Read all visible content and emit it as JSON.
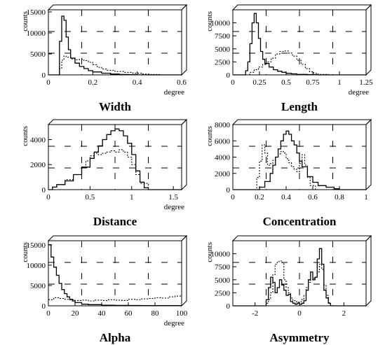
{
  "chart_data": [
    {
      "type": "line",
      "title": "Width",
      "xlabel": "degree",
      "ylabel": "counts",
      "xlim": [
        0,
        0.6
      ],
      "ylim": [
        0,
        15500
      ],
      "xticks": [
        "0",
        "0.2",
        "0.4",
        "0.6"
      ],
      "yticks": [
        "0",
        "5000",
        "10000",
        "15000"
      ],
      "grid": true,
      "series": [
        {
          "style": "solid",
          "x": [
            0.0,
            0.04,
            0.05,
            0.06,
            0.07,
            0.08,
            0.09,
            0.1,
            0.12,
            0.14,
            0.16,
            0.18,
            0.2,
            0.24,
            0.28,
            0.32,
            0.36,
            0.4,
            0.44,
            0.48,
            0.52,
            0.6
          ],
          "values": [
            0,
            0,
            8000,
            14000,
            13000,
            9000,
            6000,
            4000,
            2800,
            2000,
            1500,
            1000,
            700,
            400,
            200,
            100,
            50,
            20,
            0,
            0,
            0,
            0
          ]
        },
        {
          "style": "dotted",
          "x": [
            0.0,
            0.04,
            0.05,
            0.06,
            0.07,
            0.08,
            0.1,
            0.12,
            0.14,
            0.16,
            0.18,
            0.2,
            0.22,
            0.24,
            0.26,
            0.3,
            0.34,
            0.38,
            0.42,
            0.46,
            0.5,
            0.6
          ],
          "values": [
            0,
            0,
            1500,
            3500,
            4500,
            4200,
            3800,
            3600,
            3700,
            3400,
            3000,
            2400,
            1800,
            1400,
            1100,
            800,
            600,
            400,
            200,
            100,
            0,
            0
          ]
        }
      ]
    },
    {
      "type": "line",
      "title": "Length",
      "xlabel": "degree",
      "ylabel": "counts",
      "xlim": [
        0,
        1.25
      ],
      "ylim": [
        0,
        12500
      ],
      "xticks": [
        "0",
        "0.25",
        "0.5",
        "0.75",
        "1",
        "1.25"
      ],
      "yticks": [
        "0",
        "2500",
        "5000",
        "7500",
        "10000"
      ],
      "grid": true,
      "series": [
        {
          "style": "solid",
          "x": [
            0.0,
            0.1,
            0.12,
            0.14,
            0.16,
            0.18,
            0.2,
            0.22,
            0.24,
            0.26,
            0.28,
            0.3,
            0.34,
            0.38,
            0.42,
            0.46,
            0.5,
            0.55,
            0.6,
            0.7,
            0.8,
            1.25
          ],
          "values": [
            0,
            0,
            800,
            2500,
            6000,
            10000,
            11800,
            10000,
            7000,
            4500,
            3000,
            2200,
            1500,
            1000,
            700,
            500,
            300,
            200,
            100,
            50,
            0,
            0
          ]
        },
        {
          "style": "dotted",
          "x": [
            0.0,
            0.12,
            0.16,
            0.2,
            0.24,
            0.28,
            0.32,
            0.36,
            0.4,
            0.44,
            0.48,
            0.52,
            0.56,
            0.6,
            0.64,
            0.68,
            0.72,
            0.76,
            0.8,
            0.9,
            1.25
          ],
          "values": [
            0,
            0,
            500,
            1000,
            1500,
            2000,
            2500,
            3200,
            4000,
            4500,
            4600,
            4200,
            3600,
            2800,
            2000,
            1200,
            600,
            300,
            100,
            0,
            0
          ]
        }
      ]
    },
    {
      "type": "line",
      "title": "Distance",
      "xlabel": "degree",
      "ylabel": "counts",
      "xlim": [
        0,
        1.6
      ],
      "ylim": [
        0,
        5200
      ],
      "xticks": [
        "0",
        "0.5",
        "1",
        "1.5"
      ],
      "yticks": [
        "0",
        "2000",
        "4000"
      ],
      "grid": true,
      "series": [
        {
          "style": "solid",
          "x": [
            0.0,
            0.05,
            0.1,
            0.2,
            0.3,
            0.4,
            0.5,
            0.55,
            0.6,
            0.65,
            0.7,
            0.75,
            0.8,
            0.85,
            0.9,
            0.95,
            1.0,
            1.05,
            1.1,
            1.15,
            1.2,
            1.6
          ],
          "values": [
            0,
            200,
            400,
            700,
            1200,
            1800,
            2500,
            3000,
            3500,
            4000,
            4400,
            4700,
            4850,
            4700,
            4300,
            3700,
            2800,
            1500,
            600,
            150,
            0,
            0
          ]
        },
        {
          "style": "dotted",
          "x": [
            0.0,
            0.05,
            0.1,
            0.2,
            0.3,
            0.4,
            0.45,
            0.5,
            0.55,
            0.6,
            0.65,
            0.7,
            0.75,
            0.8,
            0.85,
            0.9,
            0.95,
            1.0,
            1.05,
            1.1,
            1.2,
            1.6
          ],
          "values": [
            0,
            200,
            400,
            800,
            1200,
            1800,
            2300,
            2700,
            2900,
            2800,
            2900,
            3000,
            3100,
            3000,
            3200,
            3000,
            2600,
            2000,
            1200,
            500,
            0,
            0
          ]
        }
      ]
    },
    {
      "type": "line",
      "title": "Concentration",
      "xlabel": "",
      "ylabel": "counts",
      "xlim": [
        0,
        1
      ],
      "ylim": [
        0,
        8000
      ],
      "xticks": [
        "0",
        "0.2",
        "0.4",
        "0.6",
        "0.8",
        "1"
      ],
      "yticks": [
        "0",
        "2000",
        "4000",
        "6000",
        "8000"
      ],
      "grid": true,
      "series": [
        {
          "style": "solid",
          "x": [
            0.0,
            0.16,
            0.2,
            0.24,
            0.28,
            0.3,
            0.32,
            0.34,
            0.36,
            0.38,
            0.4,
            0.42,
            0.44,
            0.46,
            0.48,
            0.5,
            0.52,
            0.56,
            0.6,
            0.64,
            0.7,
            0.76,
            0.8,
            1.0
          ],
          "values": [
            0,
            0,
            300,
            1000,
            2000,
            3000,
            4000,
            5000,
            6000,
            6800,
            7200,
            6800,
            6000,
            5500,
            4500,
            3500,
            2800,
            1600,
            900,
            500,
            300,
            100,
            0,
            0
          ]
        },
        {
          "style": "dotted",
          "x": [
            0.0,
            0.16,
            0.18,
            0.2,
            0.22,
            0.24,
            0.26,
            0.28,
            0.3,
            0.32,
            0.34,
            0.36,
            0.38,
            0.4,
            0.42,
            0.44,
            0.46,
            0.48,
            0.5,
            0.52,
            0.54,
            0.56,
            0.58,
            0.62,
            1.0
          ],
          "values": [
            0,
            0,
            1500,
            3500,
            5500,
            4500,
            3000,
            3200,
            3600,
            4000,
            4400,
            4700,
            4500,
            3800,
            3300,
            2800,
            2500,
            2200,
            3200,
            4300,
            3000,
            1500,
            500,
            0,
            0
          ]
        }
      ]
    },
    {
      "type": "line",
      "title": "Alpha",
      "xlabel": "degree",
      "ylabel": "counts",
      "xlim": [
        0,
        100
      ],
      "ylim": [
        0,
        16000
      ],
      "xticks": [
        "0",
        "20",
        "40",
        "60",
        "80",
        "100"
      ],
      "yticks": [
        "0",
        "5000",
        "10000",
        "15000"
      ],
      "grid": true,
      "series": [
        {
          "style": "solid",
          "x": [
            0,
            2,
            4,
            6,
            8,
            10,
            12,
            14,
            16,
            18,
            20,
            25,
            30,
            40,
            50,
            60,
            70,
            80,
            90,
            100
          ],
          "values": [
            15000,
            12000,
            9500,
            7500,
            5500,
            4000,
            3000,
            2200,
            1600,
            1200,
            800,
            400,
            300,
            150,
            100,
            80,
            60,
            50,
            50,
            50
          ]
        },
        {
          "style": "dotted",
          "x": [
            0,
            4,
            8,
            12,
            16,
            20,
            25,
            30,
            35,
            40,
            45,
            50,
            55,
            60,
            65,
            70,
            75,
            80,
            85,
            90,
            95,
            100
          ],
          "values": [
            1500,
            2000,
            1800,
            1600,
            1500,
            1300,
            1400,
            1200,
            1400,
            1300,
            1500,
            1400,
            1300,
            1600,
            1500,
            1700,
            1800,
            2000,
            1900,
            2200,
            2400,
            2800
          ]
        }
      ]
    },
    {
      "type": "line",
      "title": "Asymmetry",
      "xlabel": "",
      "ylabel": "counts",
      "xlim": [
        -3,
        3
      ],
      "ylim": [
        0,
        12500
      ],
      "xticks": [
        "-2",
        "0",
        "2"
      ],
      "yticks": [
        "0",
        "2500",
        "5000",
        "7500",
        "10000"
      ],
      "grid": true,
      "series": [
        {
          "style": "solid",
          "x": [
            -3,
            -1.6,
            -1.5,
            -1.4,
            -1.3,
            -1.2,
            -1.1,
            -1.0,
            -0.9,
            -0.8,
            -0.7,
            -0.6,
            -0.5,
            -0.4,
            -0.3,
            -0.2,
            -0.1,
            0.0,
            0.1,
            0.2,
            0.3,
            0.4,
            0.5,
            0.6,
            0.7,
            0.8,
            0.9,
            1.0,
            1.1,
            1.2,
            1.3,
            1.4,
            3
          ],
          "values": [
            0,
            0,
            1200,
            3500,
            5500,
            4500,
            2500,
            3500,
            5000,
            4000,
            3000,
            2000,
            2200,
            800,
            500,
            300,
            500,
            300,
            500,
            1000,
            3000,
            5000,
            6500,
            5000,
            5500,
            9000,
            11000,
            8000,
            3000,
            1500,
            500,
            0,
            0
          ]
        },
        {
          "style": "dotted",
          "x": [
            -3,
            -1.6,
            -1.5,
            -1.4,
            -1.3,
            -1.2,
            -1.1,
            -1.0,
            -0.9,
            -0.8,
            -0.7,
            -0.6,
            -0.5,
            -0.4,
            -0.3,
            -0.2,
            -0.1,
            0.0,
            0.1,
            0.2,
            0.3,
            0.4,
            0.5,
            0.6,
            0.7,
            0.8,
            0.9,
            1.0,
            1.1,
            1.2,
            1.3,
            1.4,
            3
          ],
          "values": [
            0,
            0,
            500,
            1200,
            2500,
            6000,
            8000,
            8500,
            8600,
            8300,
            5000,
            3500,
            2500,
            1500,
            1000,
            800,
            700,
            800,
            1200,
            2000,
            3500,
            4500,
            5000,
            5300,
            5500,
            6500,
            8000,
            7000,
            4000,
            2000,
            600,
            0,
            0
          ]
        }
      ]
    }
  ]
}
